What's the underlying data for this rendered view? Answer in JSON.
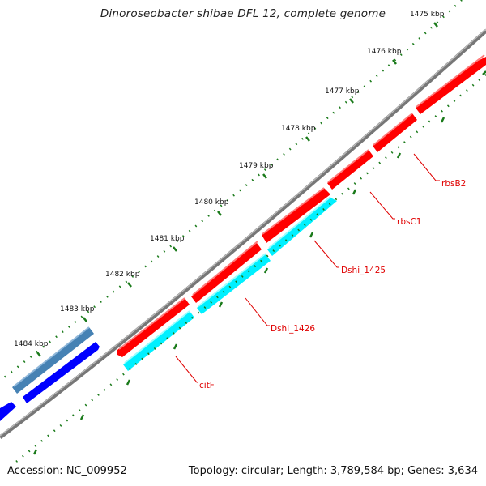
{
  "title": "Dinoroseobacter shibae DFL 12, complete genome",
  "accession_label": "Accession: NC_009952",
  "summary_label": "Topology: circular; Length: 3,789,584 bp; Genes: 3,634",
  "kbp_ticks": [
    "1475 kbp",
    "1476 kbp",
    "1477 kbp",
    "1478 kbp",
    "1479 kbp",
    "1480 kbp",
    "1481 kbp",
    "1482 kbp",
    "1483 kbp",
    "1484 kbp"
  ],
  "gene_labels": [
    "rbsB2",
    "rbsC1",
    "Dshi_1425",
    "Dshi_1426",
    "citF"
  ],
  "colors": {
    "forward_gene": "#ff0000",
    "reverse_gene": "#00ffff",
    "reverse_gene_dark": "#0000ff",
    "reverse_gene_steel": "#4682b4",
    "backbone": "#808080",
    "tick": "#1a7a1a",
    "label": "#e00000"
  }
}
